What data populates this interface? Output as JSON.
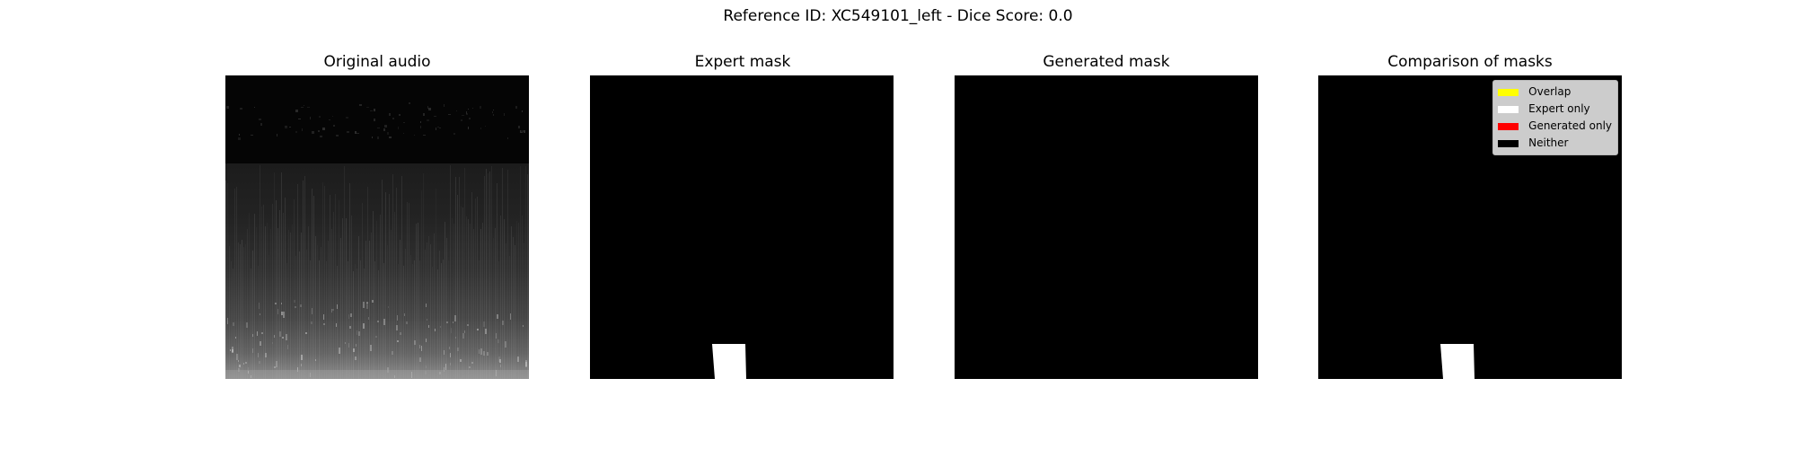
{
  "figure": {
    "suptitle": "Reference ID: XC549101_left - Dice Score: 0.0"
  },
  "panels": [
    {
      "title": "Original audio",
      "content": "spectrogram"
    },
    {
      "title": "Expert mask",
      "content": "expert-mask"
    },
    {
      "title": "Generated mask",
      "content": "generated-mask"
    },
    {
      "title": "Comparison of masks",
      "content": "comparison-mask"
    }
  ],
  "legend": {
    "location": "upper right",
    "entries": [
      {
        "label": "Overlap",
        "color": "#ffff00"
      },
      {
        "label": "Expert only",
        "color": "#ffffff"
      },
      {
        "label": "Generated only",
        "color": "#ff0000"
      },
      {
        "label": "Neither",
        "color": "#000000"
      }
    ]
  },
  "colors": {
    "background": "#000000",
    "mask": "#ffffff"
  }
}
